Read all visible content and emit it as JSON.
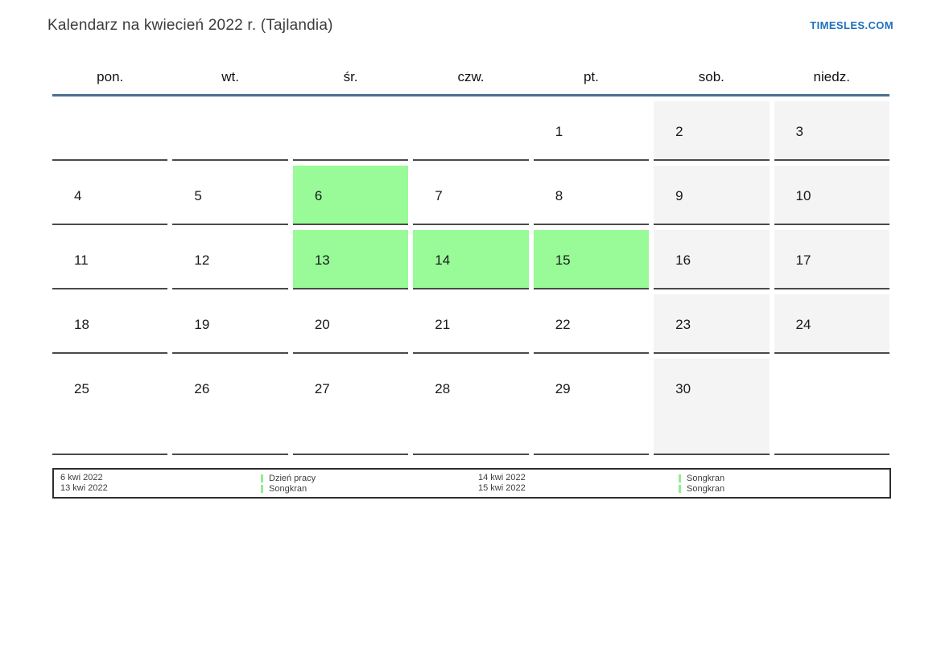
{
  "header": {
    "title": "Kalendarz na kwiecień 2022 r. (Tajlandia)",
    "site_link": "TIMESLES.COM"
  },
  "calendar": {
    "weekdays": [
      "pon.",
      "wt.",
      "śr.",
      "czw.",
      "pt.",
      "sob.",
      "niedz."
    ],
    "weeks": [
      [
        {
          "day": "",
          "type": "empty"
        },
        {
          "day": "",
          "type": "empty"
        },
        {
          "day": "",
          "type": "empty"
        },
        {
          "day": "",
          "type": "empty"
        },
        {
          "day": "1",
          "type": "regular"
        },
        {
          "day": "2",
          "type": "weekend"
        },
        {
          "day": "3",
          "type": "weekend"
        }
      ],
      [
        {
          "day": "4",
          "type": "regular"
        },
        {
          "day": "5",
          "type": "regular"
        },
        {
          "day": "6",
          "type": "holiday"
        },
        {
          "day": "7",
          "type": "regular"
        },
        {
          "day": "8",
          "type": "regular"
        },
        {
          "day": "9",
          "type": "weekend"
        },
        {
          "day": "10",
          "type": "weekend"
        }
      ],
      [
        {
          "day": "11",
          "type": "regular"
        },
        {
          "day": "12",
          "type": "regular"
        },
        {
          "day": "13",
          "type": "holiday"
        },
        {
          "day": "14",
          "type": "holiday"
        },
        {
          "day": "15",
          "type": "holiday"
        },
        {
          "day": "16",
          "type": "weekend"
        },
        {
          "day": "17",
          "type": "weekend"
        }
      ],
      [
        {
          "day": "18",
          "type": "regular"
        },
        {
          "day": "19",
          "type": "regular"
        },
        {
          "day": "20",
          "type": "regular"
        },
        {
          "day": "21",
          "type": "regular"
        },
        {
          "day": "22",
          "type": "regular"
        },
        {
          "day": "23",
          "type": "weekend"
        },
        {
          "day": "24",
          "type": "weekend"
        }
      ],
      [
        {
          "day": "25",
          "type": "regular"
        },
        {
          "day": "26",
          "type": "regular"
        },
        {
          "day": "27",
          "type": "regular"
        },
        {
          "day": "28",
          "type": "regular"
        },
        {
          "day": "29",
          "type": "regular"
        },
        {
          "day": "30",
          "type": "weekend"
        },
        {
          "day": "",
          "type": "empty"
        }
      ]
    ]
  },
  "legend": {
    "entries": [
      {
        "date": "6 kwi 2022",
        "label": "Dzień pracy"
      },
      {
        "date": "13 kwi 2022",
        "label": "Songkran"
      },
      {
        "date": "14 kwi 2022",
        "label": "Songkran"
      },
      {
        "date": "15 kwi 2022",
        "label": "Songkran"
      }
    ]
  },
  "colors": {
    "holiday_green": "#98fb98",
    "weekend_gray": "#f4f4f4",
    "header_line_blue": "#4c6e92",
    "grid_line_gray": "#4a4a4a",
    "link_blue": "#1d6fbe",
    "legend_marker_green": "#90ee90"
  }
}
